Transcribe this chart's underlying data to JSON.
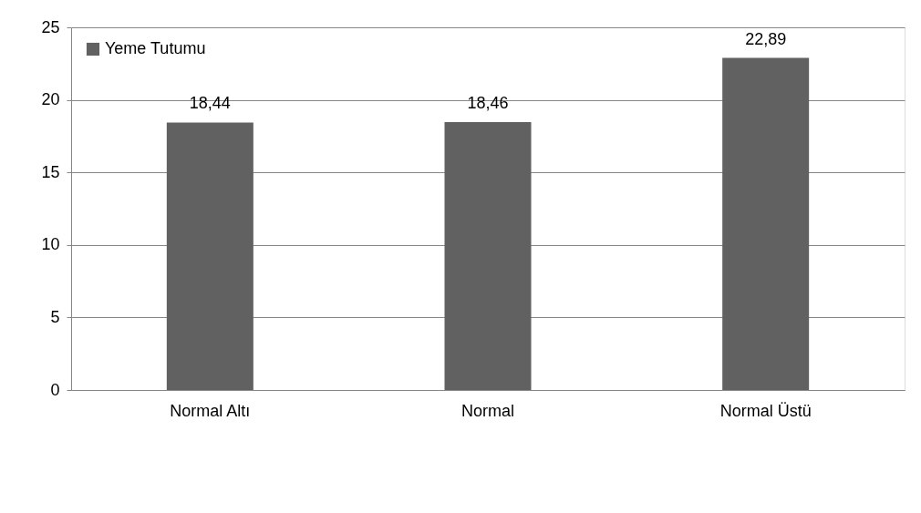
{
  "chart_data": {
    "type": "bar",
    "categories": [
      "Normal Altı",
      "Normal",
      "Normal Üstü"
    ],
    "series": [
      {
        "name": "Yeme Tutumu",
        "color": "#616161",
        "values": [
          18.44,
          18.46,
          22.89
        ],
        "value_labels": [
          "18,44",
          "18,46",
          "22,89"
        ]
      }
    ],
    "ylim": [
      0,
      25
    ],
    "yticks": [
      0,
      5,
      10,
      15,
      20,
      25
    ],
    "grid": "y",
    "legend": "top left"
  }
}
